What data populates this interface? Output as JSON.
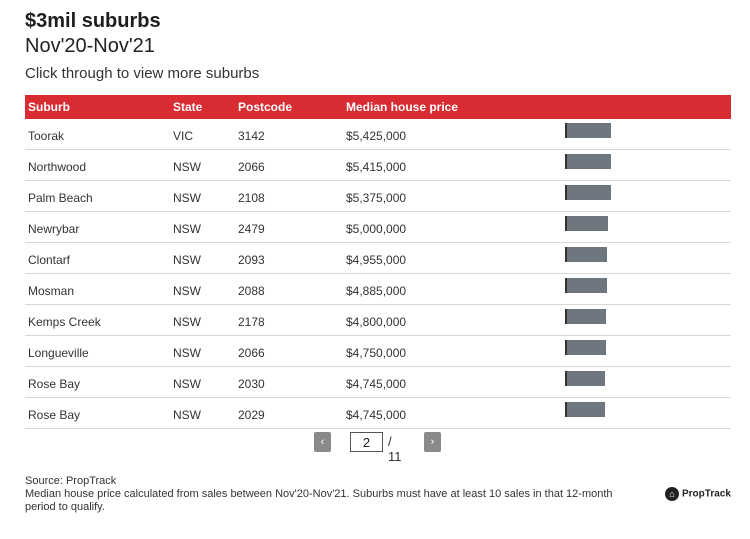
{
  "header": {
    "title": "$3mil suburbs",
    "subtitle": "Nov'20-Nov'21",
    "instruction": "Click through to view more suburbs"
  },
  "table": {
    "columns": [
      "Suburb",
      "State",
      "Postcode",
      "Median house price"
    ]
  },
  "chart_data": {
    "type": "table",
    "columns": [
      "Suburb",
      "State",
      "Postcode",
      "Median house price"
    ],
    "rows": [
      {
        "suburb": "Toorak",
        "state": "VIC",
        "postcode": "3142",
        "price": "$5,425,000",
        "value": 5425000
      },
      {
        "suburb": "Northwood",
        "state": "NSW",
        "postcode": "2066",
        "price": "$5,415,000",
        "value": 5415000
      },
      {
        "suburb": "Palm Beach",
        "state": "NSW",
        "postcode": "2108",
        "price": "$5,375,000",
        "value": 5375000
      },
      {
        "suburb": "Newrybar",
        "state": "NSW",
        "postcode": "2479",
        "price": "$5,000,000",
        "value": 5000000
      },
      {
        "suburb": "Clontarf",
        "state": "NSW",
        "postcode": "2093",
        "price": "$4,955,000",
        "value": 4955000
      },
      {
        "suburb": "Mosman",
        "state": "NSW",
        "postcode": "2088",
        "price": "$4,885,000",
        "value": 4885000
      },
      {
        "suburb": "Kemps Creek",
        "state": "NSW",
        "postcode": "2178",
        "price": "$4,800,000",
        "value": 4800000
      },
      {
        "suburb": "Longueville",
        "state": "NSW",
        "postcode": "2066",
        "price": "$4,750,000",
        "value": 4750000
      },
      {
        "suburb": "Rose Bay",
        "state": "NSW",
        "postcode": "2030",
        "price": "$4,745,000",
        "value": 4745000
      },
      {
        "suburb": "Rose Bay",
        "state": "NSW",
        "postcode": "2029",
        "price": "$4,745,000",
        "value": 4745000
      }
    ],
    "bar_color": "#6e7780"
  },
  "pagination": {
    "prev_icon": "‹",
    "next_icon": "›",
    "current_page": "2",
    "total": "/ 11"
  },
  "footer": {
    "source": "Source: PropTrack",
    "note": "Median house price calculated from sales between Nov'20-Nov'21. Suburbs must have at least 10 sales in that 12-month period to qualify.",
    "logo_text": "PropTrack"
  },
  "colors": {
    "header_bg": "#d92b32",
    "bar": "#6e7780"
  }
}
